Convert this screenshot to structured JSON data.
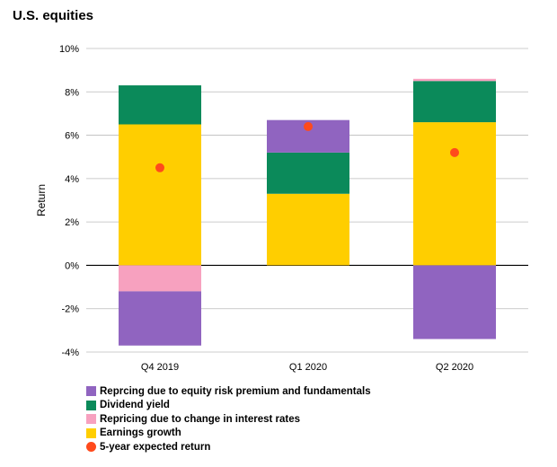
{
  "title": "U.S. equities",
  "chart_data": {
    "type": "bar",
    "stacked": true,
    "categories": [
      "Q4 2019",
      "Q1 2020",
      "Q2 2020"
    ],
    "ylabel": "Return",
    "ylim": [
      -4,
      10
    ],
    "yticks": [
      "10%",
      "8%",
      "6%",
      "4%",
      "2%",
      "0%",
      "-2%",
      "-4%"
    ],
    "ytick_values": [
      10,
      8,
      6,
      4,
      2,
      0,
      -2,
      -4
    ],
    "grid": true,
    "legend_position": "bottom-left",
    "series": [
      {
        "name": "Repricing due to equity risk premium and fundamentals",
        "color": "#9064C0",
        "values": [
          -2.5,
          1.5,
          -3.4
        ]
      },
      {
        "name": "Dividend yield",
        "color": "#0B8A5A",
        "values": [
          1.8,
          1.9,
          1.9
        ]
      },
      {
        "name": "Repricing due to change in interest rates",
        "color": "#F7A1BF",
        "values": [
          -1.2,
          0,
          0.1
        ]
      },
      {
        "name": "Earnings growth",
        "color": "#FFCE00",
        "values": [
          6.5,
          3.3,
          6.6
        ]
      }
    ],
    "positive_stack_order": [
      "Earnings growth",
      "Dividend yield",
      "Repricing due to change in interest rates",
      "Repricing due to equity risk premium and fundamentals"
    ],
    "negative_stack_order": [
      "Repricing due to change in interest rates",
      "Repricing due to equity risk premium and fundamentals"
    ],
    "markers": {
      "name": "5-year expected return",
      "color": "#FF4A1C",
      "values": [
        4.5,
        6.4,
        5.2
      ]
    }
  },
  "legend": [
    {
      "label": "Reprcing due to equity risk premium and fundamentals",
      "color": "#9064C0",
      "shape": "square"
    },
    {
      "label": "Dividend yield",
      "color": "#0B8A5A",
      "shape": "square"
    },
    {
      "label": "Repricing due to change in interest rates",
      "color": "#F7A1BF",
      "shape": "square"
    },
    {
      "label": "Earnings growth",
      "color": "#FFCE00",
      "shape": "square"
    },
    {
      "label": "5-year expected return",
      "color": "#FF4A1C",
      "shape": "circle"
    }
  ]
}
